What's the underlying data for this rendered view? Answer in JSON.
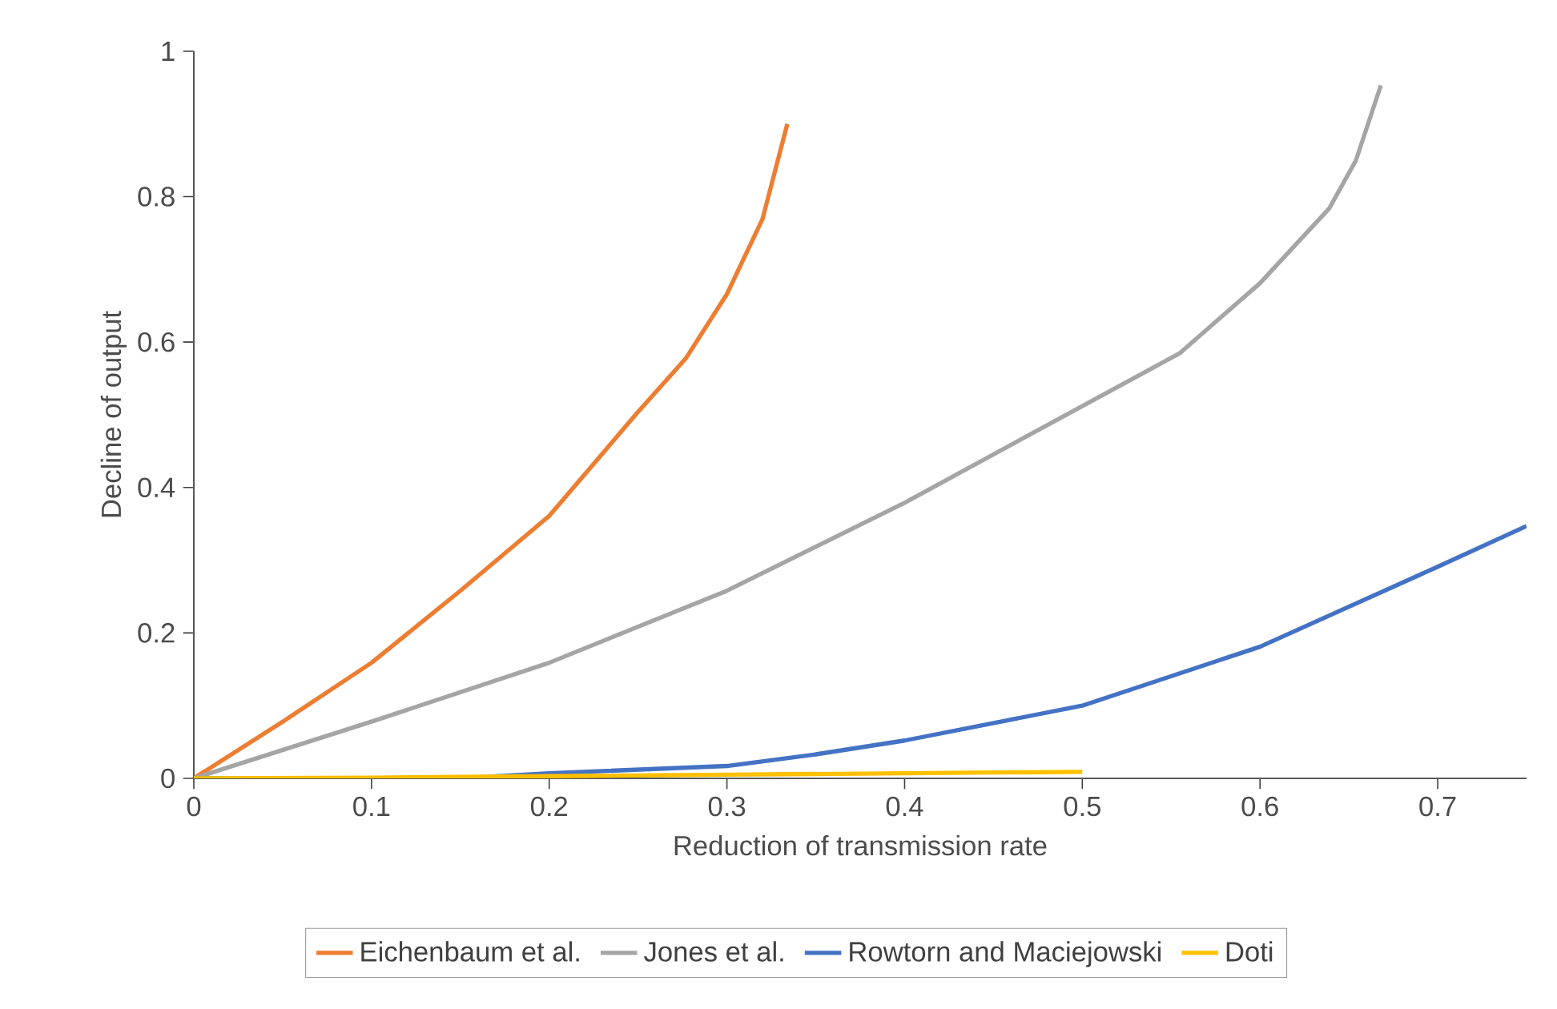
{
  "chart_data": {
    "type": "line",
    "xlabel": "Reduction of transmission rate",
    "ylabel": "Decline of output",
    "xlim": [
      0,
      0.75
    ],
    "ylim": [
      0,
      1
    ],
    "xticks": [
      0,
      0.1,
      0.2,
      0.3,
      0.4,
      0.5,
      0.6,
      0.7
    ],
    "yticks": [
      0,
      0.2,
      0.4,
      0.6,
      0.8,
      1
    ],
    "grid": false,
    "legend": "bottom",
    "series": [
      {
        "name": "Eichenbaum et al.",
        "color": "#ed7d31",
        "x": [
          0,
          0.05,
          0.1,
          0.15,
          0.2,
          0.25,
          0.277,
          0.3,
          0.32,
          0.334
        ],
        "values": [
          0,
          0.078,
          0.159,
          0.258,
          0.361,
          0.504,
          0.578,
          0.666,
          0.769,
          0.9
        ]
      },
      {
        "name": "Jones et al.",
        "color": "#a5a5a5",
        "x": [
          0,
          0.1,
          0.2,
          0.3,
          0.4,
          0.5,
          0.555,
          0.6,
          0.639,
          0.654,
          0.668
        ],
        "values": [
          0,
          0.078,
          0.159,
          0.258,
          0.379,
          0.512,
          0.585,
          0.681,
          0.784,
          0.85,
          0.953
        ]
      },
      {
        "name": "Rowtorn and Maciejowski",
        "color": "#4472c4",
        "x": [
          0,
          0.15,
          0.2,
          0.3,
          0.35,
          0.4,
          0.5,
          0.6,
          0.7,
          0.75
        ],
        "values": [
          0,
          0,
          0.007,
          0.017,
          0.033,
          0.052,
          0.1,
          0.181,
          0.291,
          0.347
        ]
      },
      {
        "name": "Doti",
        "color": "#ffc000",
        "x": [
          0,
          0.1,
          0.2,
          0.3,
          0.4,
          0.5
        ],
        "values": [
          0,
          0.001,
          0.003,
          0.005,
          0.007,
          0.009
        ]
      }
    ]
  }
}
